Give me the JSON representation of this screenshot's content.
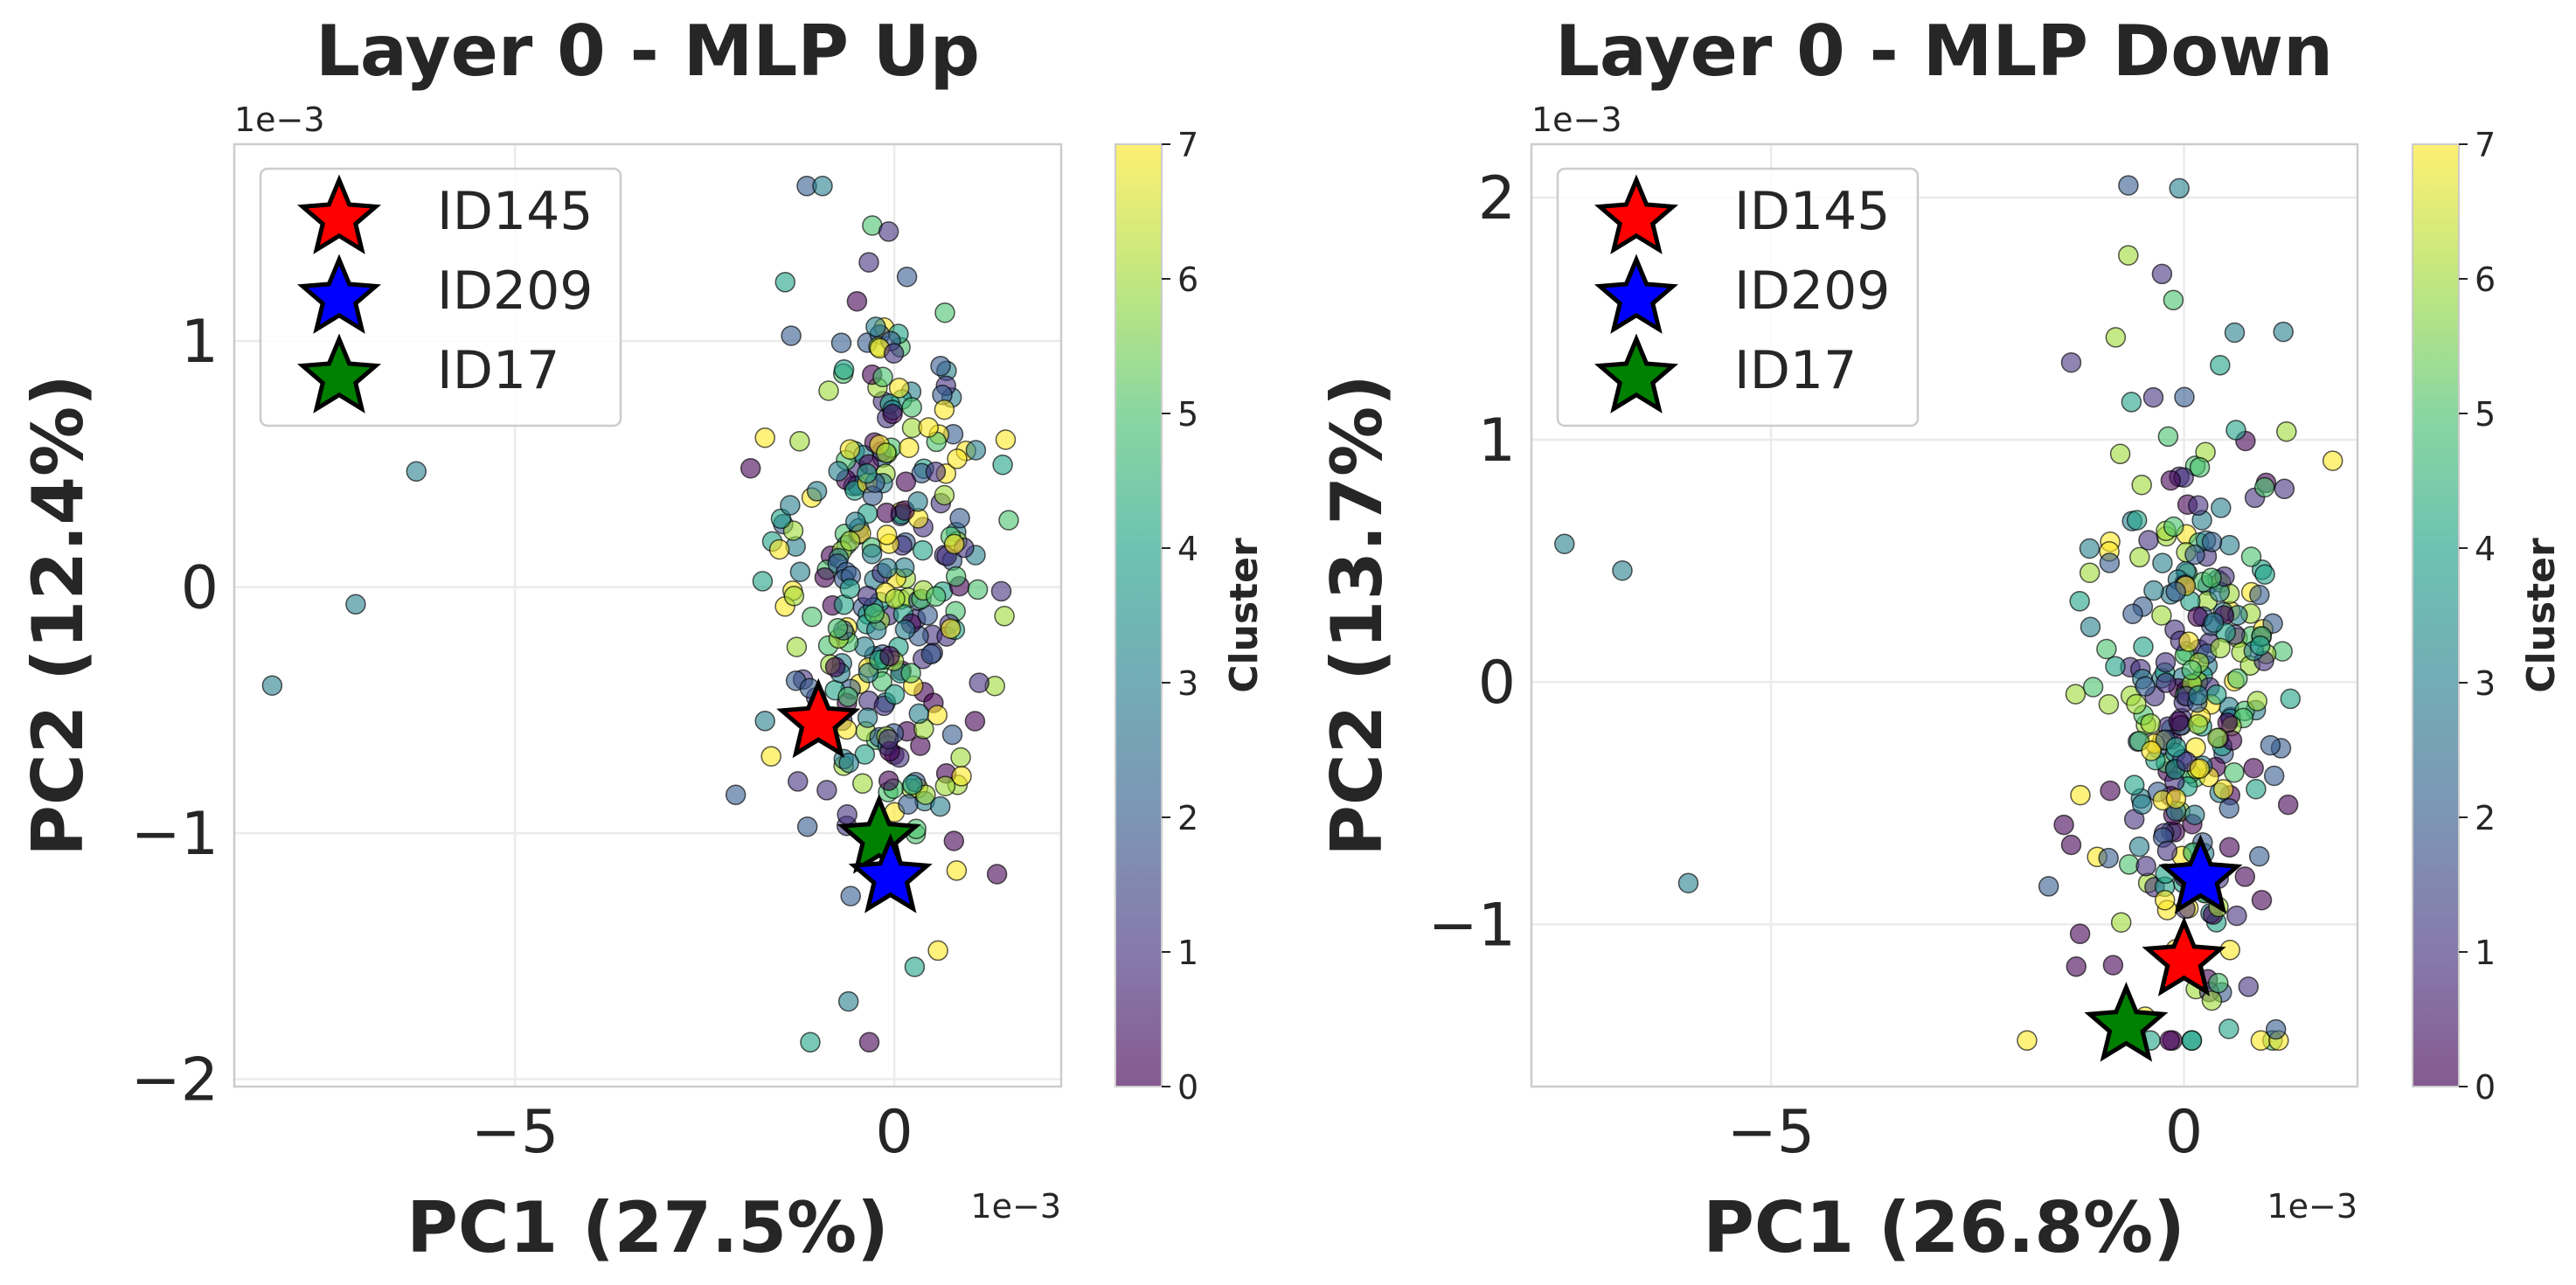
{
  "chart_data": [
    {
      "type": "scatter",
      "title": "Layer 0 - MLP Up",
      "xlabel": "PC1 (27.5%)",
      "ylabel": "PC2 (12.4%)",
      "x_offset_text": "1e−3",
      "y_offset_text": "1e−3",
      "xlim": [
        -8.7,
        2.2
      ],
      "ylim": [
        -2.03,
        1.8
      ],
      "xticks": [
        -5,
        0
      ],
      "xtick_labels": [
        "−5",
        "0"
      ],
      "yticks": [
        -2,
        -1,
        0,
        1
      ],
      "ytick_labels": [
        "−2",
        "−1",
        "0",
        "1"
      ],
      "grid": true,
      "legend_position": "top-left",
      "outliers": [
        {
          "x": -6.3,
          "y": 0.47,
          "cluster": 3
        },
        {
          "x": -7.1,
          "y": -0.07,
          "cluster": 3
        },
        {
          "x": -8.2,
          "y": -0.4,
          "cluster": 3
        }
      ],
      "main_cluster": {
        "center_x": -0.1,
        "center_y": 0.0,
        "spread_x": 0.65,
        "spread_y": 0.6,
        "y_min": -1.85,
        "y_max": 1.63,
        "n_points": 300
      },
      "highlighted": [
        {
          "name": "ID145",
          "x": -1.0,
          "y": -0.55,
          "color": "#ff0000"
        },
        {
          "name": "ID209",
          "x": -0.05,
          "y": -1.18,
          "color": "#0000ff"
        },
        {
          "name": "ID17",
          "x": -0.2,
          "y": -1.02,
          "color": "#008000"
        }
      ],
      "colorbar": {
        "label": "Cluster",
        "min": 0,
        "max": 7,
        "ticks": [
          "0",
          "1",
          "2",
          "3",
          "4",
          "5",
          "6",
          "7"
        ]
      }
    },
    {
      "type": "scatter",
      "title": "Layer 0 - MLP Down",
      "xlabel": "PC1 (26.8%)",
      "ylabel": "PC2 (13.7%)",
      "x_offset_text": "1e−3",
      "y_offset_text": "1e−3",
      "xlim": [
        -7.9,
        2.1
      ],
      "ylim": [
        -1.67,
        2.22
      ],
      "xticks": [
        -5,
        0
      ],
      "xtick_labels": [
        "−5",
        "0"
      ],
      "yticks": [
        -1,
        0,
        1,
        2
      ],
      "ytick_labels": [
        "−1",
        "0",
        "1",
        "2"
      ],
      "grid": true,
      "legend_position": "top-left",
      "outliers": [
        {
          "x": -7.5,
          "y": 0.57,
          "cluster": 3
        },
        {
          "x": -6.8,
          "y": 0.46,
          "cluster": 3
        },
        {
          "x": -6.0,
          "y": -0.83,
          "cluster": 3
        }
      ],
      "main_cluster": {
        "center_x": 0.1,
        "center_y": 0.05,
        "spread_x": 0.6,
        "spread_y": 0.65,
        "y_min": -1.48,
        "y_max": 2.05,
        "n_points": 300
      },
      "highlighted": [
        {
          "name": "ID145",
          "x": 0.0,
          "y": -1.15,
          "color": "#ff0000"
        },
        {
          "name": "ID209",
          "x": 0.2,
          "y": -0.81,
          "color": "#0000ff"
        },
        {
          "name": "ID17",
          "x": -0.7,
          "y": -1.42,
          "color": "#008000"
        }
      ],
      "colorbar": {
        "label": "Cluster",
        "min": 0,
        "max": 7,
        "ticks": [
          "0",
          "1",
          "2",
          "3",
          "4",
          "5",
          "6",
          "7"
        ]
      }
    }
  ],
  "colors": {
    "text": "#262626",
    "grid": "#ebebeb",
    "spine": "#cccccc",
    "viridis_stops": [
      "#440154",
      "#46327e",
      "#365c8d",
      "#277f8e",
      "#1fa187",
      "#4ac16d",
      "#a0da39",
      "#fde725"
    ]
  }
}
